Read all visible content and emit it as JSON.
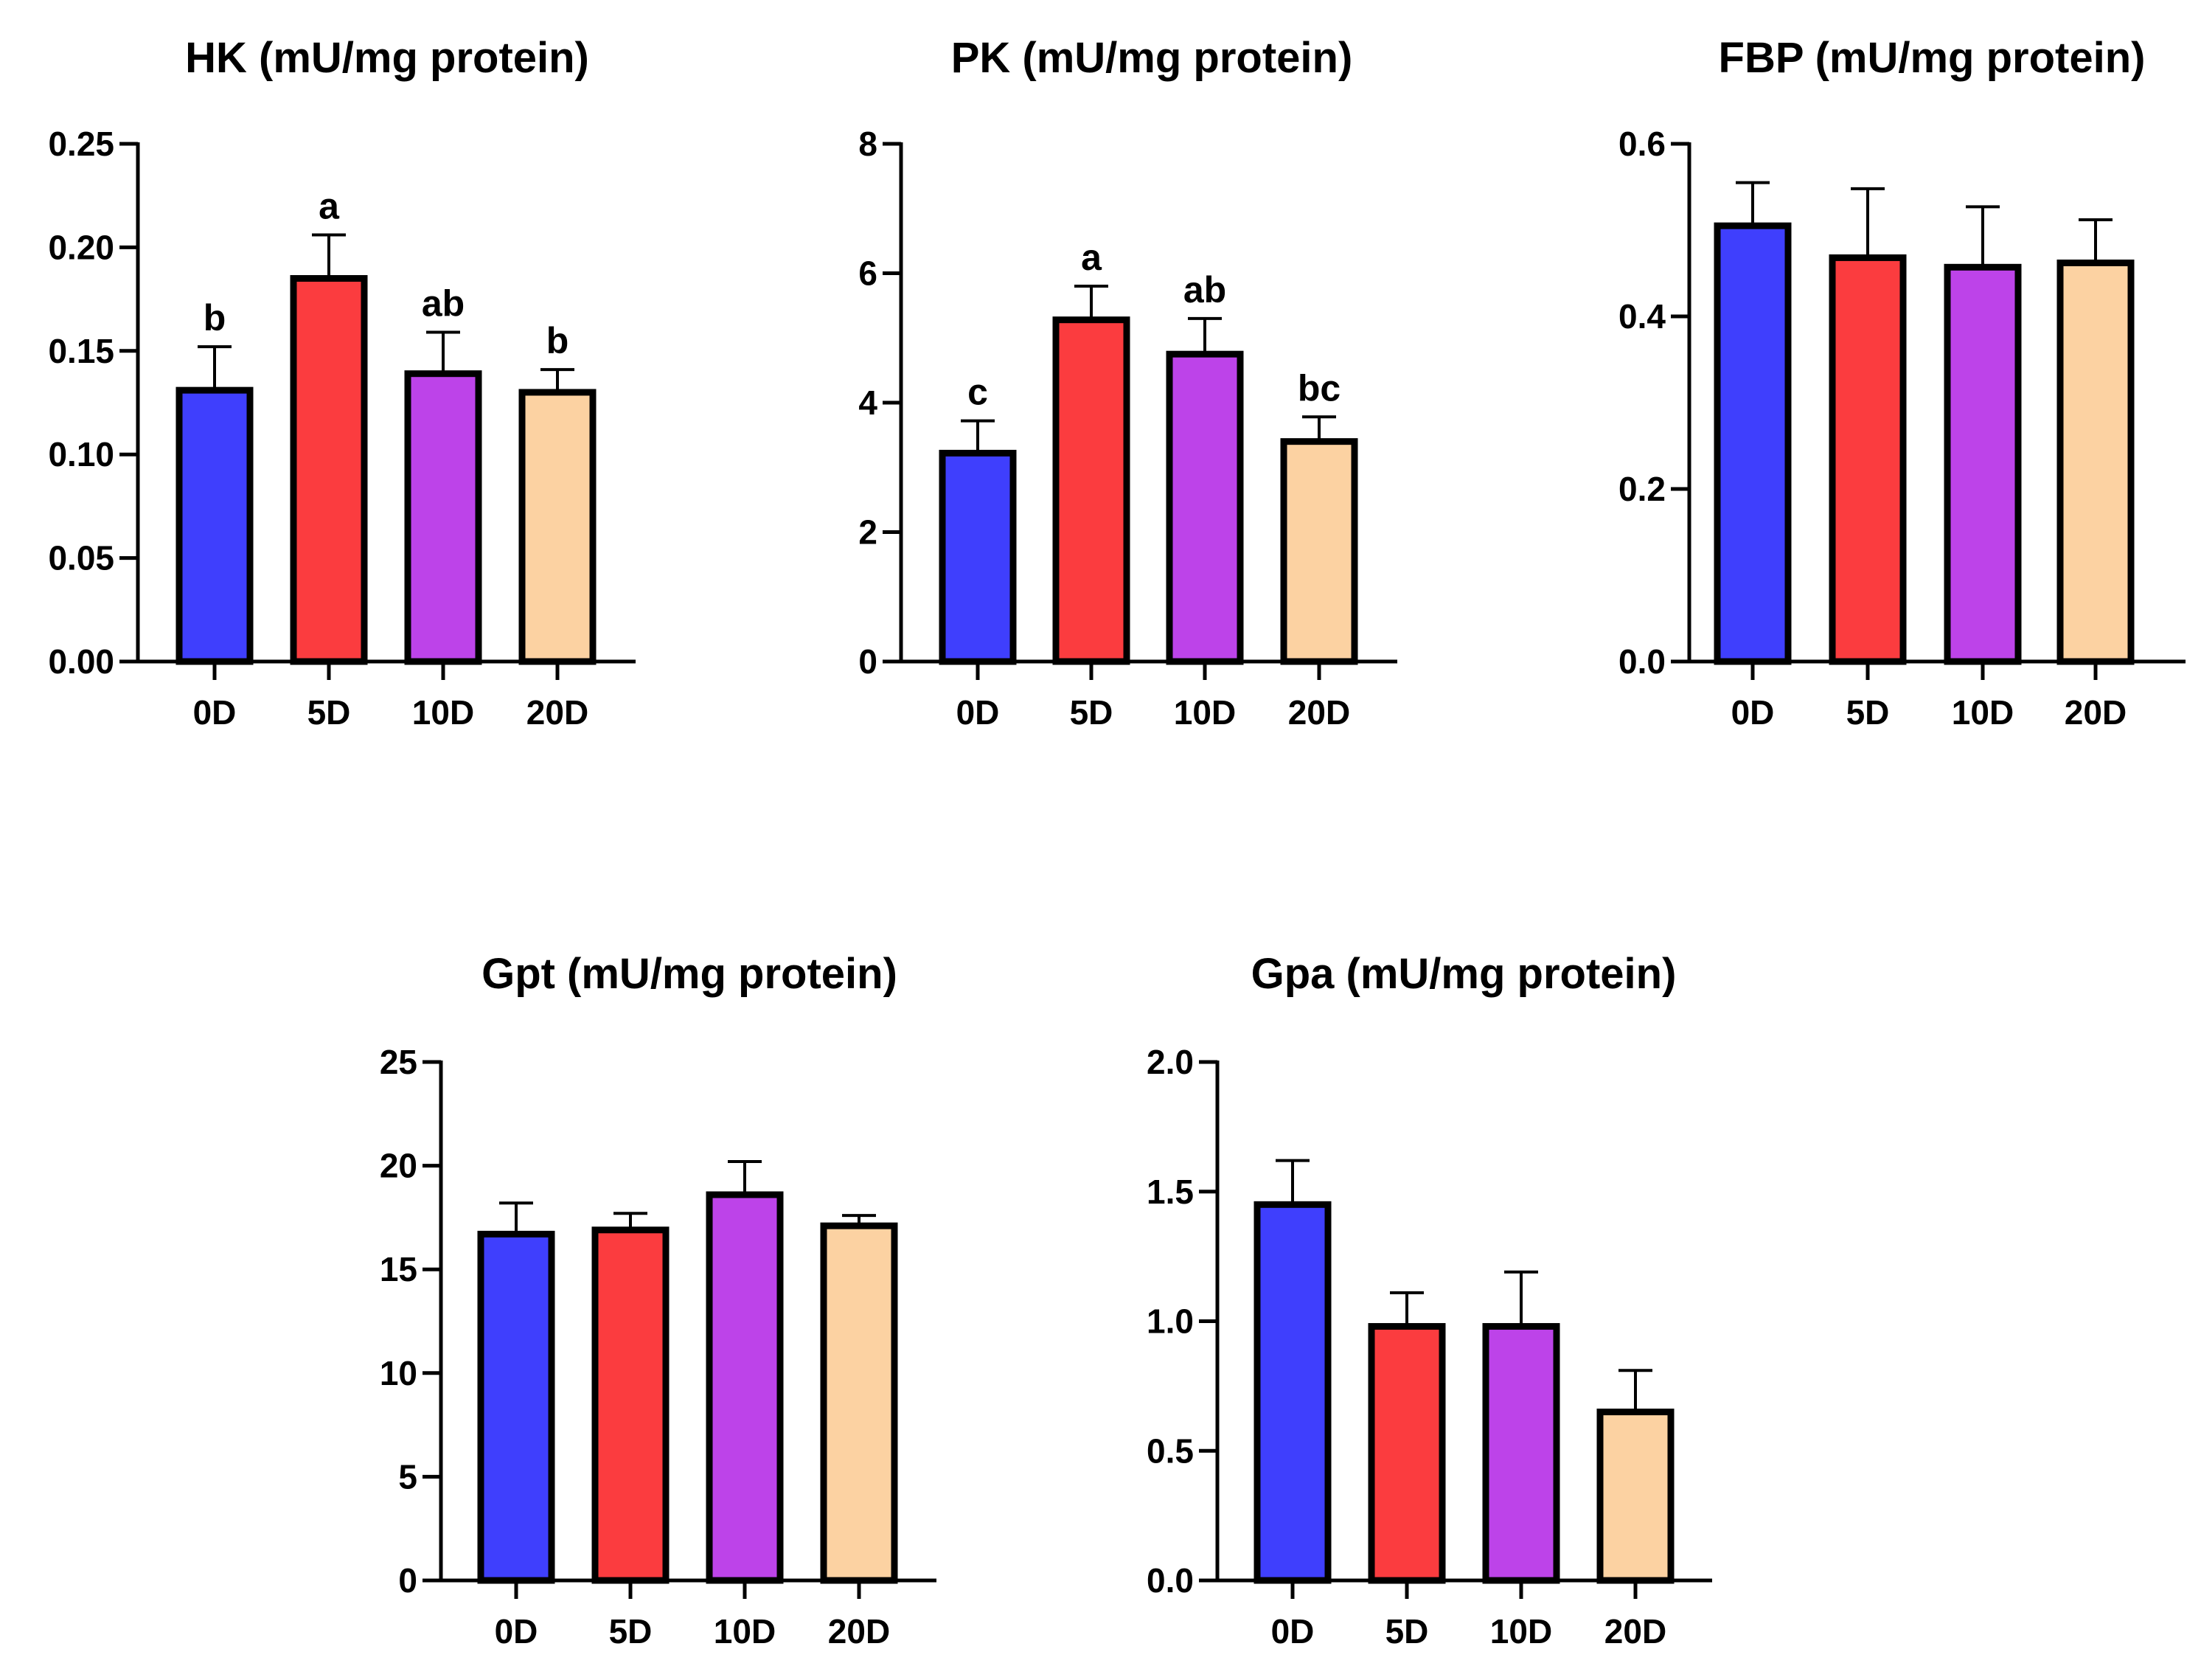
{
  "figure": {
    "background": "#ffffff"
  },
  "chart_data": [
    {
      "type": "bar",
      "title": "HK (mU/mg protein)",
      "xlabel": "",
      "ylabel": "",
      "categories": [
        "0D",
        "5D",
        "10D",
        "20D"
      ],
      "values": [
        0.131,
        0.185,
        0.139,
        0.13
      ],
      "errors": [
        0.021,
        0.021,
        0.02,
        0.011
      ],
      "sig_labels": [
        "b",
        "a",
        "ab",
        "b"
      ],
      "ylim": [
        0,
        0.25
      ],
      "yticks": [
        0,
        0.05,
        0.1,
        0.15,
        0.2,
        0.25
      ],
      "ytick_labels": [
        "0.00",
        "0.05",
        "0.10",
        "0.15",
        "0.20",
        "0.25"
      ],
      "colors": [
        "#3f3ffd",
        "#fb3c3f",
        "#bd43e9",
        "#fcd2a2"
      ],
      "grid": false
    },
    {
      "type": "bar",
      "title": "PK (mU/mg protein)",
      "xlabel": "",
      "ylabel": "",
      "categories": [
        "0D",
        "5D",
        "10D",
        "20D"
      ],
      "values": [
        3.22,
        5.28,
        4.75,
        3.4
      ],
      "errors": [
        0.5,
        0.52,
        0.55,
        0.38
      ],
      "sig_labels": [
        "c",
        "a",
        "ab",
        "bc"
      ],
      "ylim": [
        0,
        8
      ],
      "yticks": [
        0,
        2,
        4,
        6,
        8
      ],
      "ytick_labels": [
        "0",
        "2",
        "4",
        "6",
        "8"
      ],
      "colors": [
        "#3f3ffd",
        "#fb3c3f",
        "#bd43e9",
        "#fcd2a2"
      ],
      "grid": false
    },
    {
      "type": "bar",
      "title": "FBP (mU/mg protein)",
      "xlabel": "",
      "ylabel": "",
      "categories": [
        "0D",
        "5D",
        "10D",
        "20D"
      ],
      "values": [
        0.505,
        0.468,
        0.457,
        0.462
      ],
      "errors": [
        0.05,
        0.08,
        0.07,
        0.05
      ],
      "sig_labels": [],
      "ylim": [
        0,
        0.6
      ],
      "yticks": [
        0,
        0.2,
        0.4,
        0.6
      ],
      "ytick_labels": [
        "0.0",
        "0.2",
        "0.4",
        "0.6"
      ],
      "colors": [
        "#3f3ffd",
        "#fb3c3f",
        "#bd43e9",
        "#fcd2a2"
      ],
      "grid": false
    },
    {
      "type": "bar",
      "title": "Gpt (mU/mg protein)",
      "xlabel": "",
      "ylabel": "",
      "categories": [
        "0D",
        "5D",
        "10D",
        "20D"
      ],
      "values": [
        16.7,
        16.9,
        18.6,
        17.1
      ],
      "errors": [
        1.5,
        0.8,
        1.6,
        0.5
      ],
      "sig_labels": [],
      "ylim": [
        0,
        25
      ],
      "yticks": [
        0,
        5,
        10,
        15,
        20,
        25
      ],
      "ytick_labels": [
        "0",
        "5",
        "10",
        "15",
        "20",
        "25"
      ],
      "colors": [
        "#3f3ffd",
        "#fb3c3f",
        "#bd43e9",
        "#fcd2a2"
      ],
      "grid": false
    },
    {
      "type": "bar",
      "title": "Gpa (mU/mg protein)",
      "xlabel": "",
      "ylabel": "",
      "categories": [
        "0D",
        "5D",
        "10D",
        "20D"
      ],
      "values": [
        1.45,
        0.98,
        0.98,
        0.65
      ],
      "errors": [
        0.17,
        0.13,
        0.21,
        0.16
      ],
      "sig_labels": [],
      "ylim": [
        0,
        2.0
      ],
      "yticks": [
        0,
        0.5,
        1.0,
        1.5,
        2.0
      ],
      "ytick_labels": [
        "0.0",
        "0.5",
        "1.0",
        "1.5",
        "2.0"
      ],
      "colors": [
        "#3f3ffd",
        "#fb3c3f",
        "#bd43e9",
        "#fcd2a2"
      ],
      "grid": false
    }
  ]
}
